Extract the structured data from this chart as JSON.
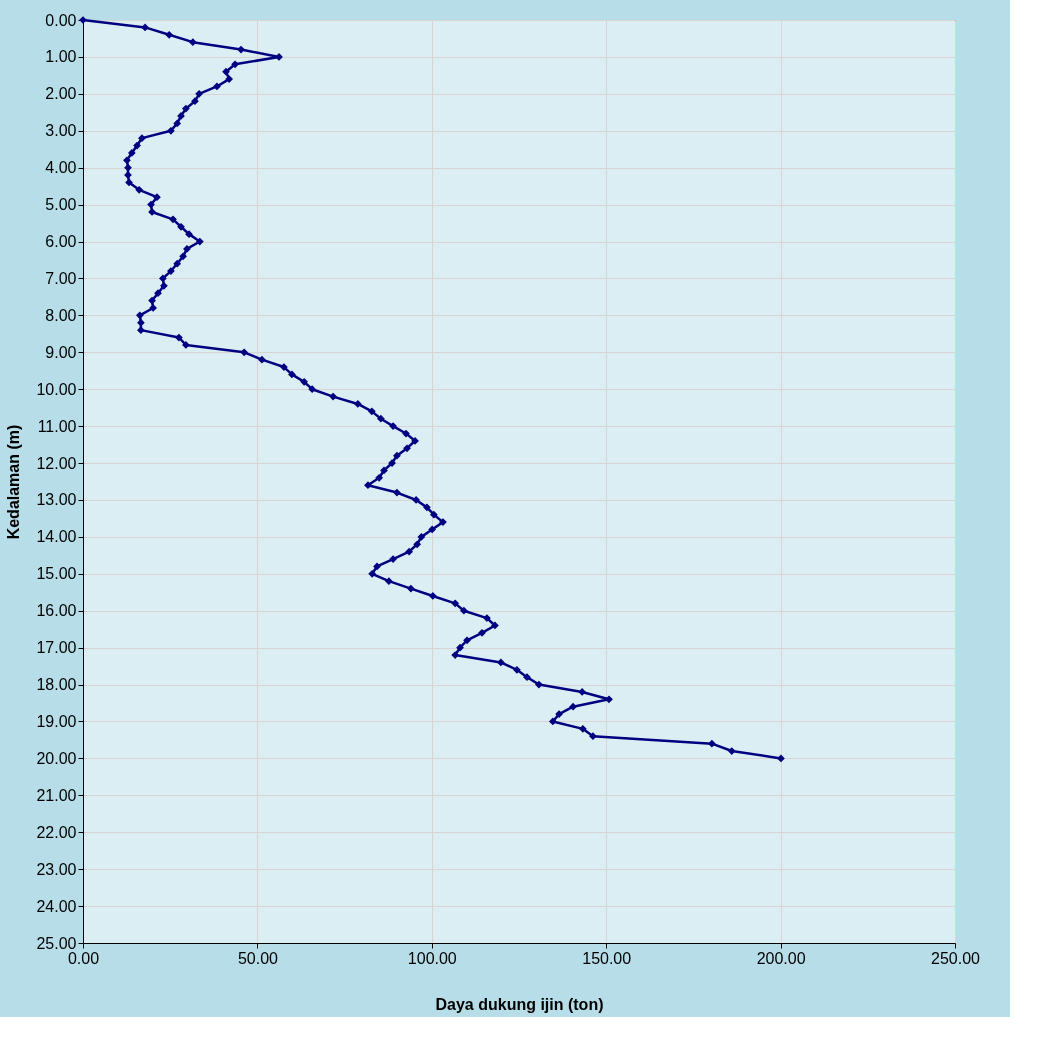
{
  "chart_data": {
    "type": "line",
    "orientation": "horizontal",
    "xlabel": "Daya dukung ijin (ton)",
    "ylabel": "Kedalaman (m)",
    "x": [
      0,
      0.2,
      0.4,
      0.6,
      0.8,
      1.0,
      1.2,
      1.4,
      1.6,
      1.8,
      2.0,
      2.2,
      2.4,
      2.6,
      2.8,
      3.0,
      3.2,
      3.4,
      3.6,
      3.8,
      4.0,
      4.2,
      4.4,
      4.6,
      4.8,
      5.0,
      5.2,
      5.4,
      5.6,
      5.8,
      6.0,
      6.2,
      6.4,
      6.6,
      6.8,
      7.0,
      7.2,
      7.4,
      7.6,
      7.8,
      8.0,
      8.2,
      8.4,
      8.6,
      8.8,
      9.0,
      9.2,
      9.4,
      9.6,
      9.8,
      10.0,
      10.2,
      10.4,
      10.6,
      10.8,
      11.0,
      11.2,
      11.4,
      11.6,
      11.8,
      12.0,
      12.2,
      12.4,
      12.6,
      12.8,
      13.0,
      13.2,
      13.4,
      13.6,
      13.8,
      14.0,
      14.2,
      14.4,
      14.6,
      14.8,
      15.0,
      15.2,
      15.4,
      15.6,
      15.8,
      16.0,
      16.2,
      16.4,
      16.6,
      16.8,
      17.0,
      17.2,
      17.4,
      17.6,
      17.8,
      18.0,
      18.2,
      18.4,
      18.6,
      18.8,
      19.0,
      19.2,
      19.4,
      19.6,
      19.8,
      20.0
    ],
    "series": [
      {
        "color": "#000080",
        "values": [
          0,
          17.8,
          24.7,
          31.5,
          45.3,
          56.2,
          43.6,
          41.0,
          41.9,
          38.4,
          33.3,
          32.1,
          29.5,
          28.1,
          27.0,
          25.2,
          16.9,
          15.5,
          14.0,
          12.6,
          12.9,
          12.9,
          13.2,
          16.1,
          21.2,
          19.5,
          19.8,
          25.8,
          28.1,
          30.4,
          33.5,
          29.8,
          28.7,
          27.0,
          25.2,
          22.9,
          23.2,
          21.5,
          19.8,
          20.1,
          16.3,
          16.6,
          16.6,
          27.5,
          29.5,
          46.2,
          51.3,
          57.6,
          59.9,
          63.4,
          65.7,
          71.7,
          78.8,
          82.8,
          85.4,
          88.9,
          92.6,
          95.2,
          92.9,
          90.0,
          88.6,
          86.3,
          84.9,
          81.7,
          90.0,
          95.5,
          98.6,
          100.6,
          103.2,
          100.1,
          97.0,
          95.8,
          93.5,
          88.9,
          84.3,
          82.9,
          87.7,
          94.0,
          100.3,
          106.7,
          109.2,
          115.8,
          118.1,
          114.4,
          110.1,
          108.1,
          106.7,
          119.8,
          124.4,
          127.3,
          130.7,
          143.1,
          150.8,
          140.5,
          136.5,
          134.7,
          143.3,
          146.2,
          180.3,
          186.0,
          200.1
        ]
      }
    ],
    "xlim": [
      0,
      250
    ],
    "xticks": [
      {
        "value": 0,
        "label": "0.00"
      },
      {
        "value": 50,
        "label": "50.00"
      },
      {
        "value": 100,
        "label": "100.00"
      },
      {
        "value": 150,
        "label": "150.00"
      },
      {
        "value": 200,
        "label": "200.00"
      },
      {
        "value": 250,
        "label": "250.00"
      }
    ],
    "ylim": [
      25,
      0
    ],
    "yticks": [
      {
        "value": 0,
        "label": "0.00"
      },
      {
        "value": 1,
        "label": "1.00"
      },
      {
        "value": 2,
        "label": "2.00"
      },
      {
        "value": 3,
        "label": "3.00"
      },
      {
        "value": 4,
        "label": "4.00"
      },
      {
        "value": 5,
        "label": "5.00"
      },
      {
        "value": 6,
        "label": "6.00"
      },
      {
        "value": 7,
        "label": "7.00"
      },
      {
        "value": 8,
        "label": "8.00"
      },
      {
        "value": 9,
        "label": "9.00"
      },
      {
        "value": 10,
        "label": "10.00"
      },
      {
        "value": 11,
        "label": "11.00"
      },
      {
        "value": 12,
        "label": "12.00"
      },
      {
        "value": 13,
        "label": "13.00"
      },
      {
        "value": 14,
        "label": "14.00"
      },
      {
        "value": 15,
        "label": "15.00"
      },
      {
        "value": 16,
        "label": "16.00"
      },
      {
        "value": 17,
        "label": "17.00"
      },
      {
        "value": 18,
        "label": "18.00"
      },
      {
        "value": 19,
        "label": "19.00"
      },
      {
        "value": 20,
        "label": "20.00"
      },
      {
        "value": 21,
        "label": "21.00"
      },
      {
        "value": 22,
        "label": "22.00"
      },
      {
        "value": 23,
        "label": "23.00"
      },
      {
        "value": 24,
        "label": "24.00"
      },
      {
        "value": 25,
        "label": "25.00"
      }
    ],
    "grid": true,
    "marker": "diamond",
    "line_style": "solid"
  }
}
